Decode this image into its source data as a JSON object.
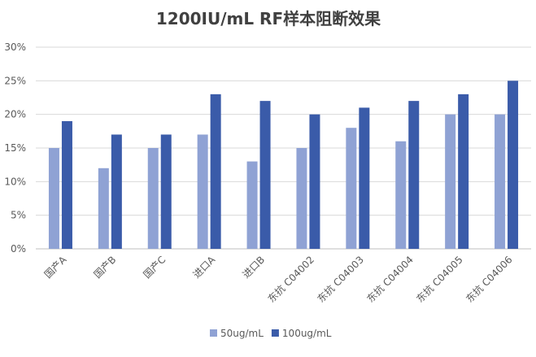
{
  "chart_data": {
    "type": "bar",
    "title": "1200IU/mL RF样本阻断效果",
    "categories": [
      "国产A",
      "国产B",
      "国产C",
      "进口A",
      "进口B",
      "东抗 C04002",
      "东抗 C04003",
      "东抗 C04004",
      "东抗 C04005",
      "东抗 C04006"
    ],
    "series": [
      {
        "name": "50ug/mL",
        "color": "#8fa2d4",
        "values": [
          15,
          12,
          15,
          17,
          13,
          15,
          18,
          16,
          20,
          20
        ]
      },
      {
        "name": "100ug/mL",
        "color": "#3a5ba9",
        "values": [
          19,
          17,
          17,
          23,
          22,
          20,
          21,
          22,
          23,
          25
        ]
      }
    ],
    "y_ticks": [
      "0%",
      "5%",
      "10%",
      "15%",
      "20%",
      "25%",
      "30%"
    ],
    "ylim": [
      0,
      30
    ],
    "ylabel": "",
    "xlabel": "",
    "grid": true,
    "legend_position": "bottom-center"
  }
}
